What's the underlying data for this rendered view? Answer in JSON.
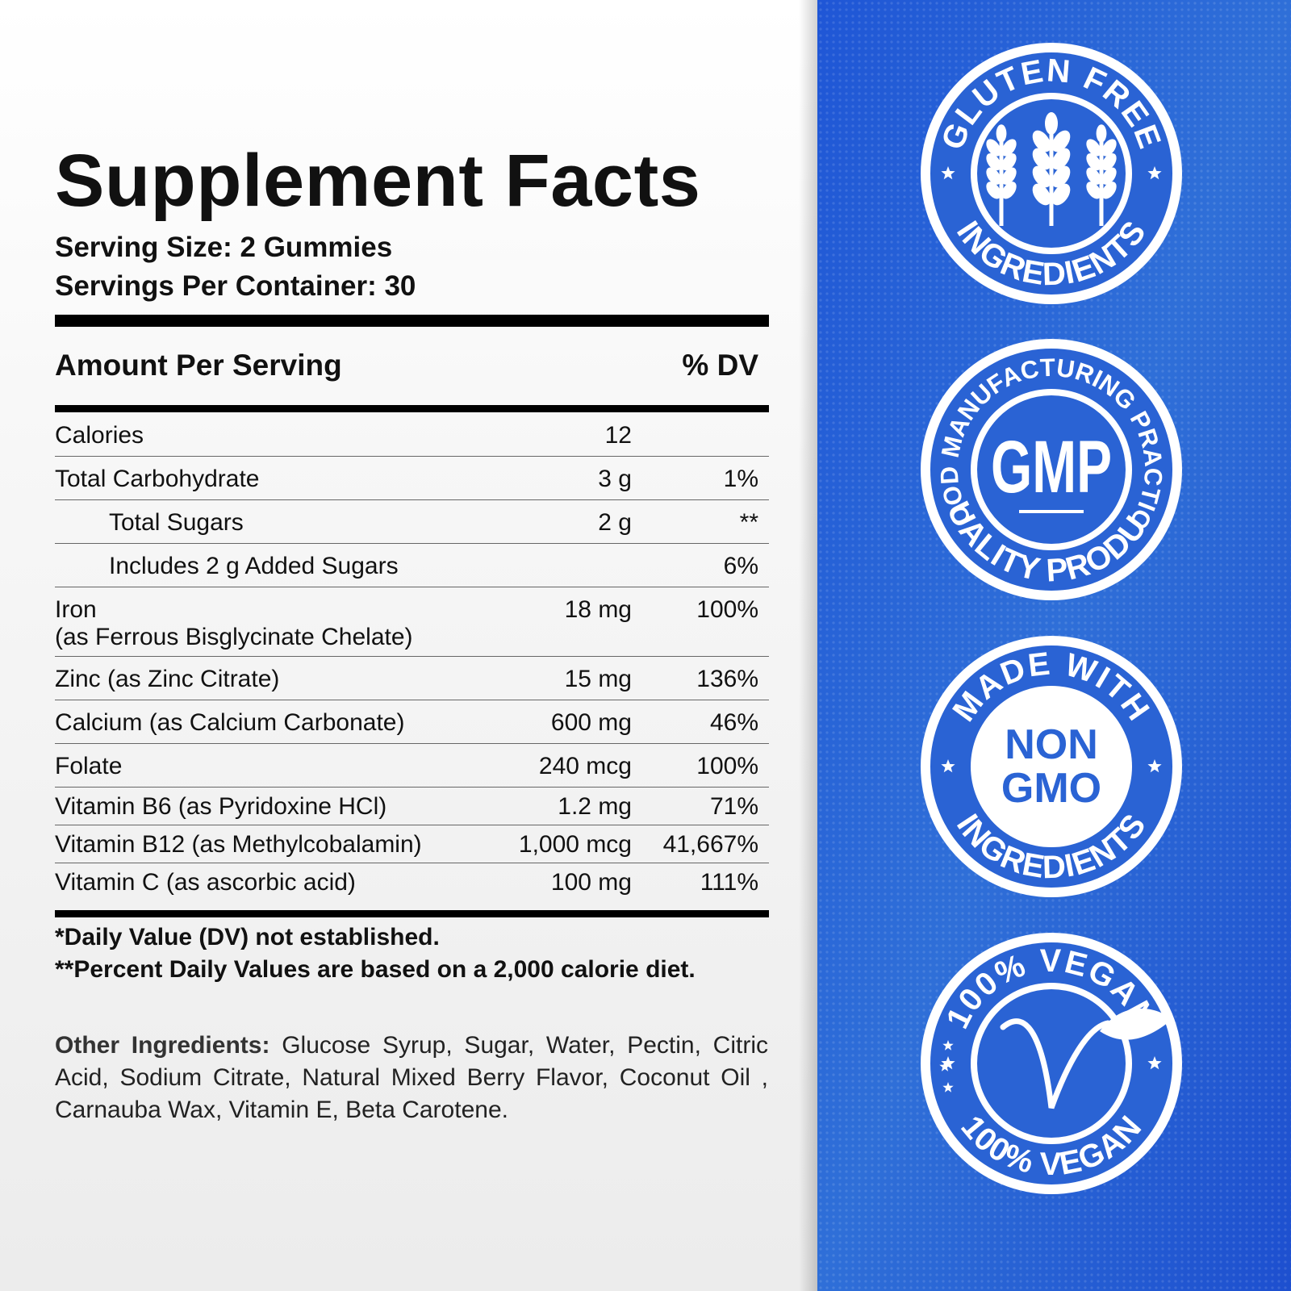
{
  "title": "Supplement Facts",
  "serving_size": "Serving Size: 2 Gummies",
  "servings_per_container": "Servings Per Container: 30",
  "table": {
    "header": [
      "Amount Per Serving",
      "% DV"
    ],
    "rows": [
      {
        "name": "Calories",
        "amount": "12"
      },
      {
        "name": "Total Carbohydrate",
        "amount": "3 g",
        "dv": "1%"
      },
      {
        "name": "Total Sugars",
        "amount": "2 g",
        "dv": "**",
        "indent": true
      },
      {
        "name": "Includes 2 g Added Sugars",
        "dv": "6%",
        "indent": true
      },
      {
        "name": "Iron",
        "note": "(as Ferrous Bisglycinate Chelate)",
        "amount": "18 mg",
        "dv": "100%"
      },
      {
        "name": "Zinc (as Zinc Citrate)",
        "amount": "15 mg",
        "dv": "136%"
      },
      {
        "name": "Calcium (as Calcium Carbonate)",
        "amount": "600 mg",
        "dv": "46%"
      },
      {
        "name": "Folate",
        "amount": "240 mcg",
        "dv": "100%"
      },
      {
        "name": "Vitamin B6 (as Pyridoxine HCl)",
        "amount": "1.2 mg",
        "dv": "71%"
      },
      {
        "name": "Vitamin B12 (as Methylcobalamin)",
        "amount": "1,000 mcg",
        "dv": "41,667%"
      },
      {
        "name": "Vitamin C (as ascorbic acid)",
        "amount": "100 mg",
        "dv": "111%"
      }
    ]
  },
  "footnotes": [
    "*Daily Value (DV) not established.",
    "**Percent Daily Values are based on a 2,000 calorie diet."
  ],
  "other_ingredients": {
    "label": "Other Ingredients:",
    "text": "Glucose Syrup, Sugar, Water, Pectin, Citric Acid, Sodium Citrate, Natural Mixed Berry Flavor, Coconut Oil , Carnauba Wax, Vitamin E, Beta Carotene."
  },
  "badges": [
    {
      "top": "GLUTEN FREE",
      "bottom": "INGREDIENTS"
    },
    {
      "top": "GOOD MANUFACTURING PRACTICE",
      "center": [
        "GMP"
      ],
      "bottom": "QUALITY PRODUCT"
    },
    {
      "top": "MADE WITH",
      "center": [
        "NON",
        "GMO"
      ],
      "bottom": "INGREDIENTS"
    },
    {
      "top": "100% VEGAN",
      "bottom": "100% VEGAN"
    }
  ]
}
